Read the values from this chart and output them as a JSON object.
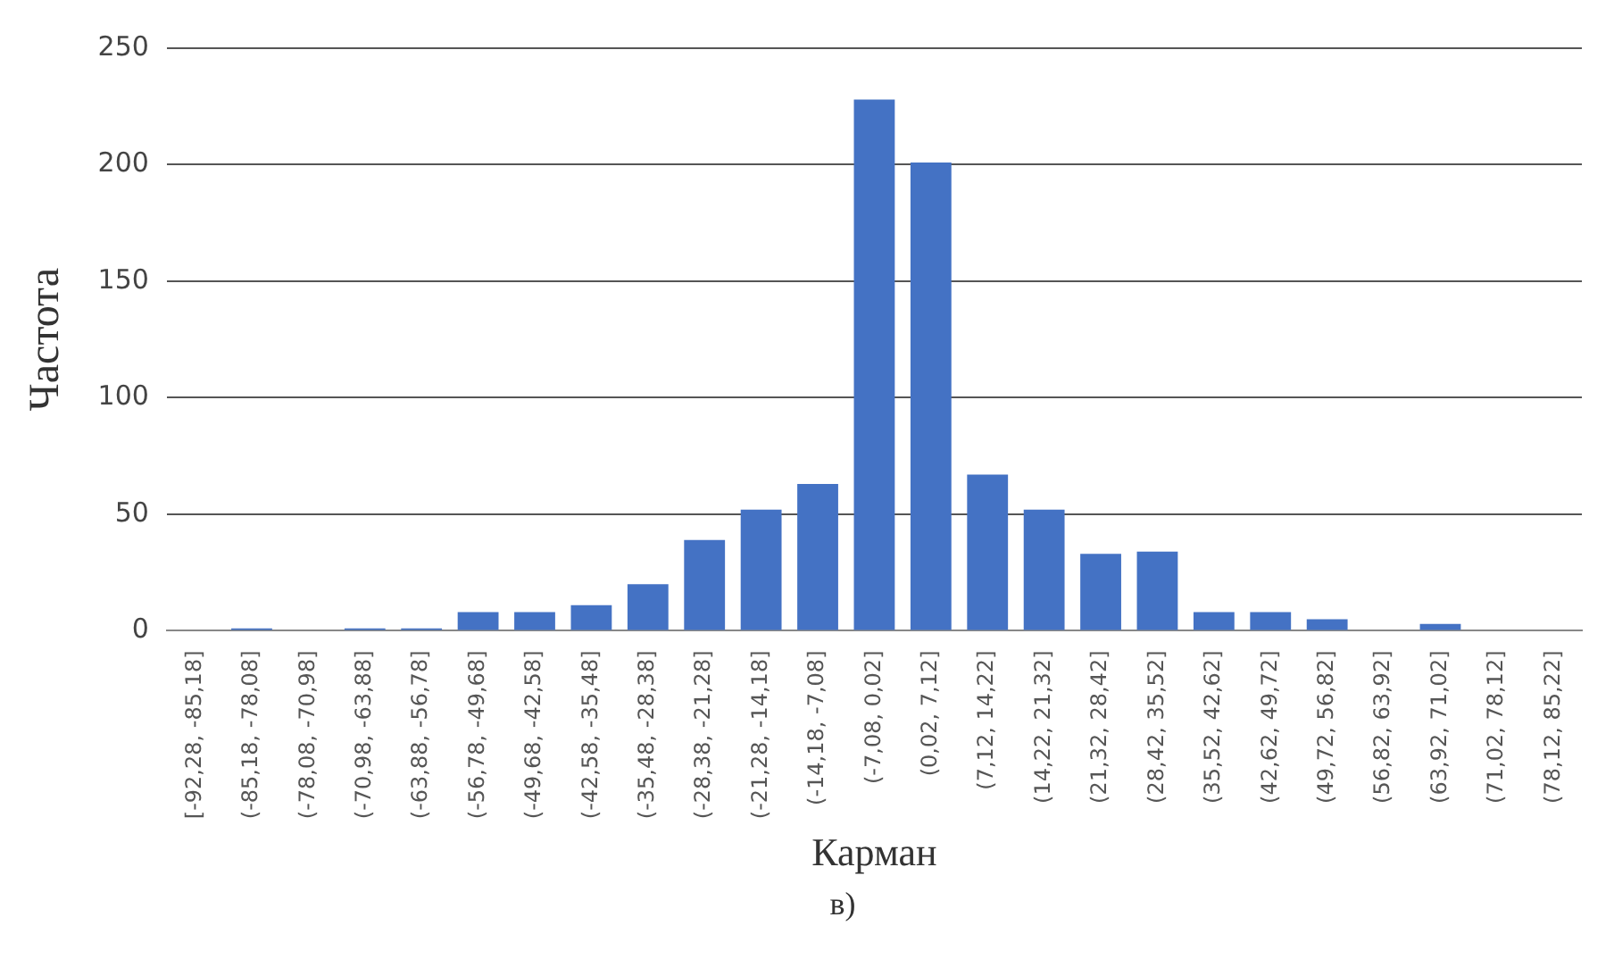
{
  "chart_data": {
    "type": "bar",
    "xlabel": "Карман",
    "ylabel": "Частота",
    "categories": [
      "[-92,28, -85,18]",
      "(-85,18, -78,08]",
      "(-78,08, -70,98]",
      "(-70,98, -63,88]",
      "(-63,88, -56,78]",
      "(-56,78, -49,68]",
      "(-49,68, -42,58]",
      "(-42,58, -35,48]",
      "(-35,48, -28,38]",
      "(-28,38, -21,28]",
      "(-21,28, -14,18]",
      "(-14,18, -7,08]",
      "(-7,08, 0,02]",
      "(0,02, 7,12]",
      "(7,12, 14,22]",
      "(14,22, 21,32]",
      "(21,32, 28,42]",
      "(28,42, 35,52]",
      "(35,52, 42,62]",
      "(42,62, 49,72]",
      "(49,72, 56,82]",
      "(56,82, 63,92]",
      "(63,92, 71,02]",
      "(71,02, 78,12]",
      "(78,12, 85,22]"
    ],
    "values": [
      0,
      1,
      0,
      1,
      1,
      8,
      8,
      11,
      20,
      39,
      52,
      63,
      228,
      201,
      67,
      52,
      33,
      34,
      8,
      8,
      5,
      0,
      3,
      0,
      0
    ],
    "color": "#4472c4",
    "ylim": [
      0,
      250
    ],
    "yticks": [
      0,
      50,
      100,
      150,
      200,
      250
    ],
    "grid": "y",
    "legend": false,
    "annotations": [
      "в)"
    ]
  }
}
